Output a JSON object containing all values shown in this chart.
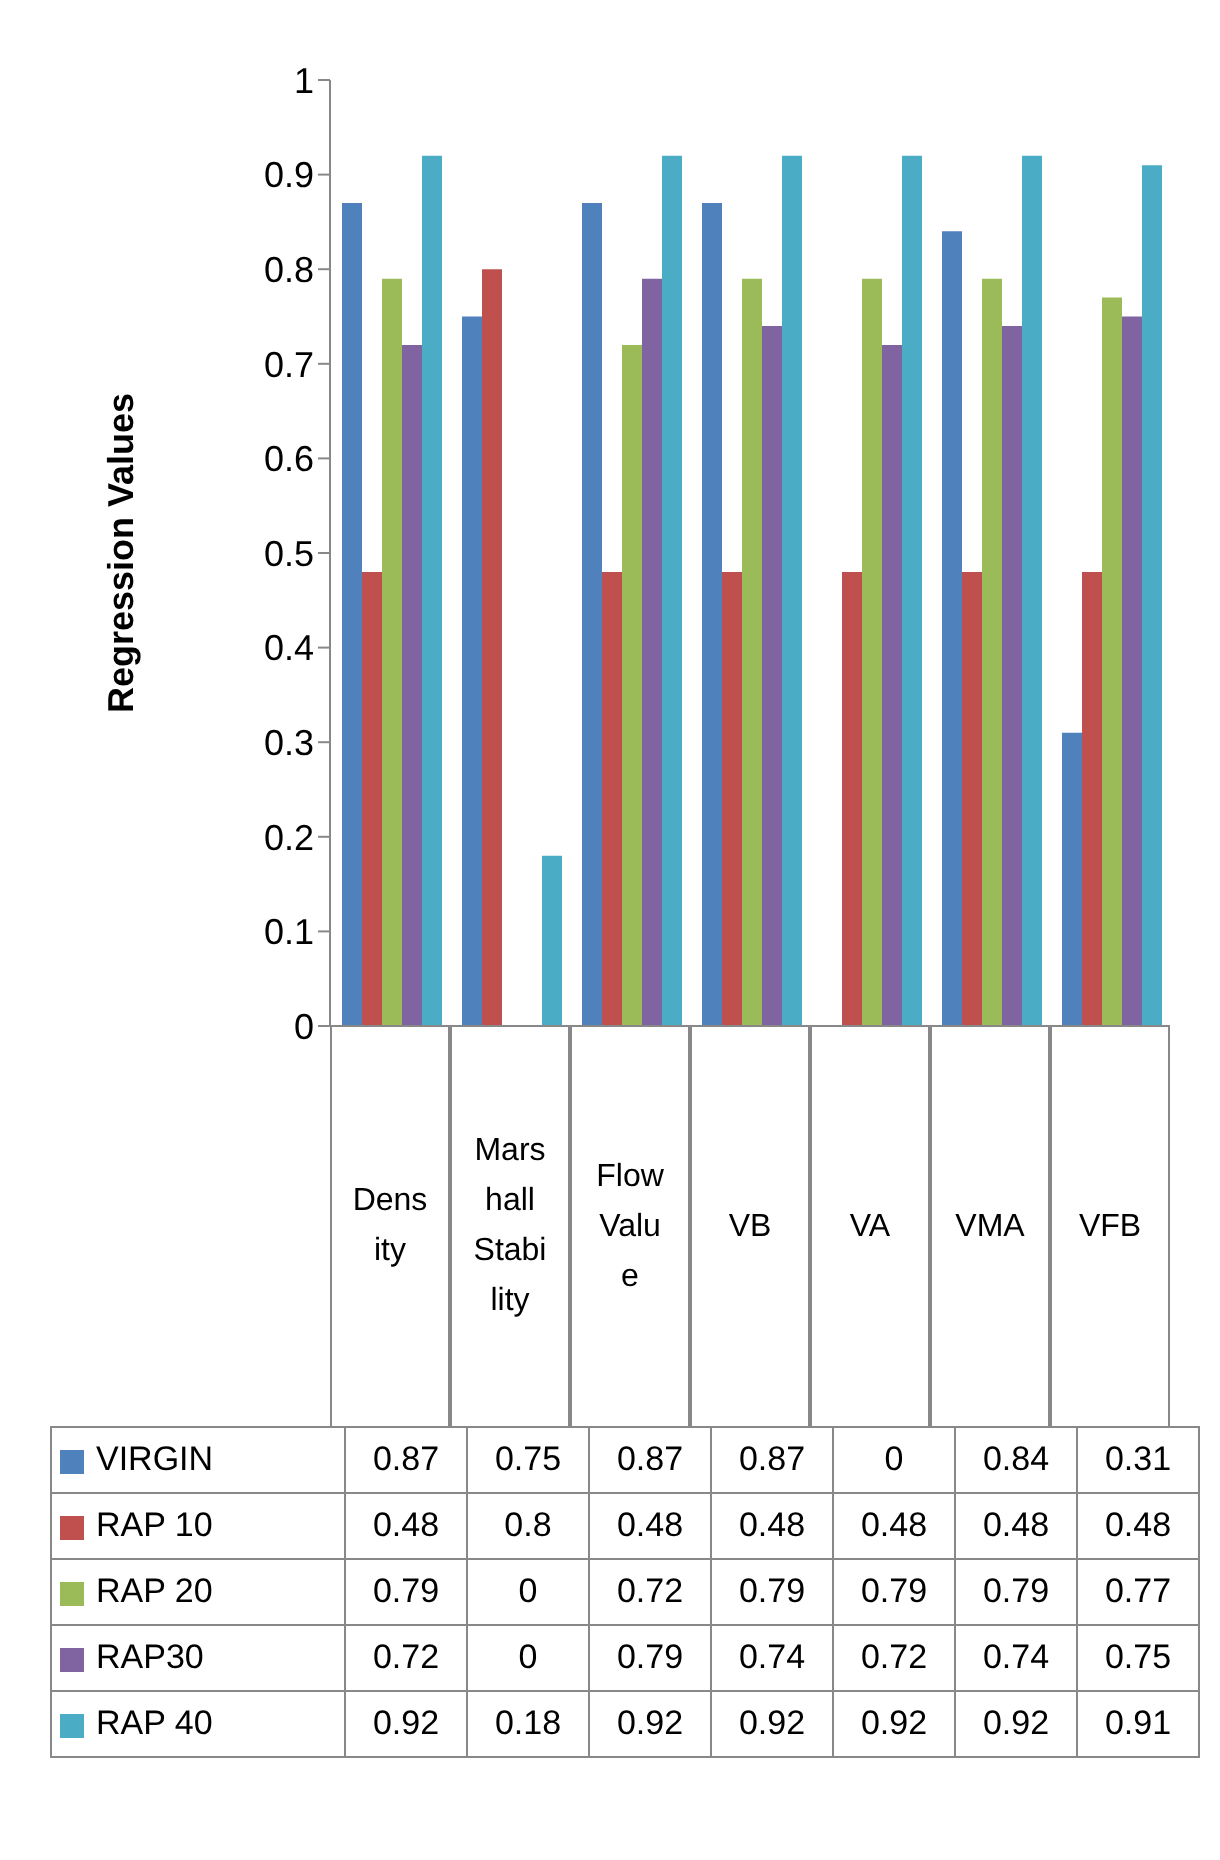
{
  "chart_data": {
    "type": "bar",
    "ylabel": "Regression Values",
    "categories": [
      "Density",
      "Marshall Stability",
      "Flow Value",
      "VB",
      "VA",
      "VMA",
      "VFB"
    ],
    "series": [
      {
        "name": "VIRGIN",
        "color": "#4f81bd",
        "values": [
          0.87,
          0.75,
          0.87,
          0.87,
          0,
          0.84,
          0.31
        ]
      },
      {
        "name": "RAP 10",
        "color": "#c0504d",
        "values": [
          0.48,
          0.8,
          0.48,
          0.48,
          0.48,
          0.48,
          0.48
        ]
      },
      {
        "name": "RAP 20",
        "color": "#9bbb59",
        "values": [
          0.79,
          0,
          0.72,
          0.79,
          0.79,
          0.79,
          0.77
        ]
      },
      {
        "name": "RAP30",
        "color": "#8064a2",
        "values": [
          0.72,
          0,
          0.79,
          0.74,
          0.72,
          0.74,
          0.75
        ]
      },
      {
        "name": "RAP 40",
        "color": "#4bacc6",
        "values": [
          0.92,
          0.18,
          0.92,
          0.92,
          0.92,
          0.92,
          0.91
        ]
      }
    ],
    "ylim": [
      0,
      1
    ],
    "yticks": [
      0,
      0.1,
      0.2,
      0.3,
      0.4,
      0.5,
      0.6,
      0.7,
      0.8,
      0.9,
      1
    ],
    "grid": false,
    "legend": "bottom",
    "data_labels": true
  }
}
